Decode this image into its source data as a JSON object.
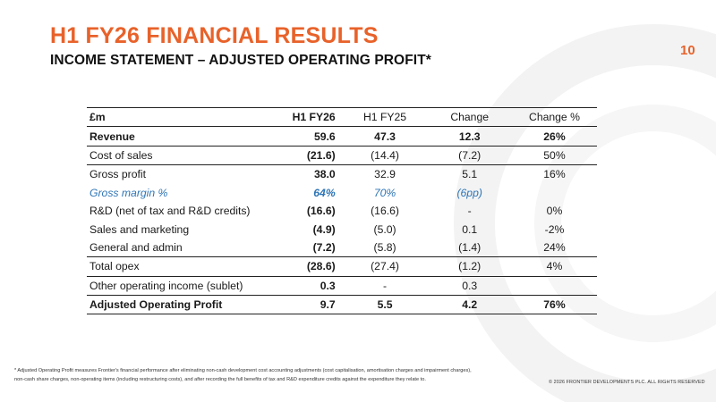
{
  "slide": {
    "title": "H1 FY26 FINANCIAL RESULTS",
    "subtitle": "INCOME STATEMENT – ADJUSTED OPERATING PROFIT*",
    "page_number": "10",
    "accent_color": "#e8622a",
    "margin_color": "#2e75b6"
  },
  "table": {
    "headers": [
      "£m",
      "H1 FY26",
      "H1 FY25",
      "Change",
      "Change %"
    ],
    "rows": [
      {
        "label": "Revenue",
        "cur": "59.6",
        "prev": "47.3",
        "chg": "12.3",
        "pct": "26%"
      },
      {
        "label": "Cost of sales",
        "cur": "(21.6)",
        "prev": "(14.4)",
        "chg": "(7.2)",
        "pct": "50%"
      },
      {
        "label": "Gross profit",
        "cur": "38.0",
        "prev": "32.9",
        "chg": "5.1",
        "pct": "16%"
      },
      {
        "label": "Gross margin %",
        "cur": "64%",
        "prev": "70%",
        "chg": "(6pp)",
        "pct": ""
      },
      {
        "label": "R&D (net of tax and R&D credits)",
        "cur": "(16.6)",
        "prev": "(16.6)",
        "chg": "-",
        "pct": "0%"
      },
      {
        "label": "Sales and marketing",
        "cur": "(4.9)",
        "prev": "(5.0)",
        "chg": "0.1",
        "pct": "-2%"
      },
      {
        "label": "General and admin",
        "cur": "(7.2)",
        "prev": "(5.8)",
        "chg": "(1.4)",
        "pct": "24%"
      },
      {
        "label": "Total opex",
        "cur": "(28.6)",
        "prev": "(27.4)",
        "chg": "(1.2)",
        "pct": "4%"
      },
      {
        "label": "Other operating income (sublet)",
        "cur": "0.3",
        "prev": "-",
        "chg": "0.3",
        "pct": ""
      },
      {
        "label": "Adjusted Operating Profit",
        "cur": "9.7",
        "prev": "5.5",
        "chg": "4.2",
        "pct": "76%"
      }
    ]
  },
  "footnote": "* Adjusted Operating Profit measures Frontier's financial performance after eliminating non-cash development cost accounting adjustments (cost capitalisation, amortisation charges and impairment charges), non-cash share charges, non-operating items (including restructuring costs), and after recording the full benefits of tax and R&D expenditure credits against the expenditure they relate to.",
  "copyright": "© 2026 FRONTIER DEVELOPMENTS PLC. ALL RIGHTS RESERVED"
}
